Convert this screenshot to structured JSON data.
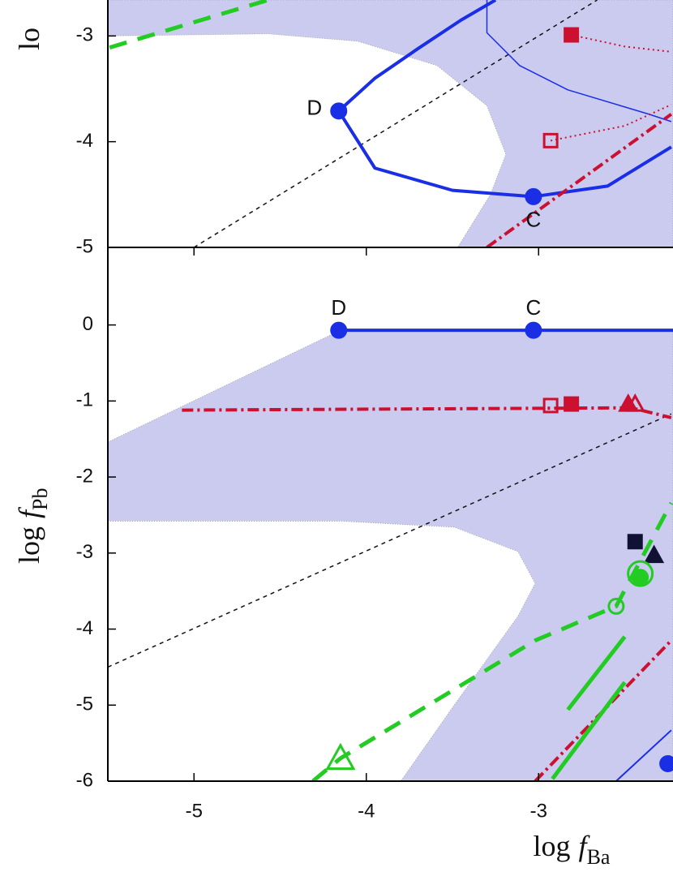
{
  "chart_data": [
    {
      "type": "line",
      "ylabel": "lo",
      "xlim": [
        -5.5,
        -2.22
      ],
      "ylim": [
        -5,
        -2.66
      ],
      "xticks": [
        -5,
        -4,
        -3
      ],
      "yticks": [
        -5,
        -4,
        -3
      ],
      "series": [
        {
          "kind": "region",
          "color": "#cbcbf0",
          "x": [
            -5.5,
            -2.22,
            -2.22,
            -3.47,
            -3.28,
            -3.19,
            -3.3,
            -3.59,
            -4.05,
            -4.57,
            -5.5
          ],
          "y": [
            -2.66,
            -2.66,
            -5,
            -5,
            -4.5,
            -4.12,
            -3.66,
            -3.28,
            -3.05,
            -2.98,
            -3.0
          ]
        },
        {
          "kind": "line",
          "style": "finedash",
          "width": 1.5,
          "color": "#111111",
          "x": [
            -5.0,
            -2.66
          ],
          "y": [
            -5.0,
            -2.66
          ]
        },
        {
          "kind": "line",
          "style": "dash",
          "width": 5,
          "color": "#22cc22",
          "x": [
            -5.49,
            -4.57
          ],
          "y": [
            -3.11,
            -2.66
          ]
        },
        {
          "kind": "line",
          "style": "solid",
          "width": 1.5,
          "color": "#1a2ee6",
          "x": [
            -3.3,
            -3.3,
            -3.11,
            -2.83,
            -2.36,
            -2.23
          ],
          "y": [
            -2.66,
            -2.97,
            -3.28,
            -3.51,
            -3.74,
            -3.81
          ]
        },
        {
          "kind": "line",
          "style": "solid",
          "width": 4,
          "color": "#1a2ee6",
          "x": [
            -3.25,
            -3.45,
            -3.7,
            -3.95,
            -4.16,
            -3.95,
            -3.5,
            -3.03,
            -2.6,
            -2.23
          ],
          "y": [
            -2.66,
            -2.85,
            -3.12,
            -3.4,
            -3.71,
            -4.25,
            -4.46,
            -4.52,
            -4.42,
            -4.05
          ]
        },
        {
          "kind": "line",
          "style": "dot",
          "width": 2,
          "color": "#cc1030",
          "x": [
            -2.81,
            -2.5,
            -2.23
          ],
          "y": [
            -2.99,
            -3.1,
            -3.15
          ]
        },
        {
          "kind": "line",
          "style": "dot",
          "width": 2,
          "color": "#cc1030",
          "x": [
            -2.93,
            -2.5,
            -2.23
          ],
          "y": [
            -3.99,
            -3.85,
            -3.65
          ]
        },
        {
          "kind": "line",
          "style": "dashdot",
          "width": 4,
          "color": "#cc1030",
          "x": [
            -3.3,
            -2.23
          ],
          "y": [
            -5.0,
            -3.74
          ]
        },
        {
          "kind": "marker",
          "shape": "circle",
          "filled": true,
          "color": "#1a2ee6",
          "label": "D",
          "label_side": "left",
          "x": [
            -4.16
          ],
          "y": [
            -3.71
          ]
        },
        {
          "kind": "marker",
          "shape": "circle",
          "filled": true,
          "color": "#1a2ee6",
          "label": "C",
          "label_side": "below",
          "x": [
            -3.03
          ],
          "y": [
            -4.52
          ]
        },
        {
          "kind": "marker",
          "shape": "square",
          "filled": true,
          "color": "#cc1030",
          "x": [
            -2.81
          ],
          "y": [
            -2.99
          ]
        },
        {
          "kind": "marker",
          "shape": "square",
          "filled": false,
          "color": "#cc1030",
          "x": [
            -2.93
          ],
          "y": [
            -3.99
          ]
        }
      ]
    },
    {
      "type": "line",
      "xlabel": "log",
      "xlabel_var": "f",
      "xlabel_sub": "Ba",
      "ylabel": "log",
      "ylabel_var": "f",
      "ylabel_sub": "Pb",
      "xlim": [
        -5.5,
        -2.22
      ],
      "ylim": [
        -6,
        1.02
      ],
      "xticks": [
        -5,
        -4,
        -3
      ],
      "yticks": [
        -6,
        -5,
        -4,
        -3,
        -2,
        -1,
        0
      ],
      "series": [
        {
          "kind": "region",
          "color": "#cbcbf0",
          "x": [
            -5.5,
            -4.16,
            -2.22,
            -2.22,
            -3.8,
            -3.49,
            -3.12,
            -3.02,
            -3.12,
            -3.49,
            -4.15,
            -5.5
          ],
          "y": [
            -1.54,
            -0.08,
            -0.08,
            -6,
            -6,
            -5.0,
            -3.83,
            -3.4,
            -2.98,
            -2.66,
            -2.58,
            -2.58
          ]
        },
        {
          "kind": "line",
          "style": "finedash",
          "width": 1.5,
          "color": "#111111",
          "x": [
            -5.5,
            -2.23
          ],
          "y": [
            -4.5,
            -1.17
          ]
        },
        {
          "kind": "line",
          "style": "solid",
          "width": 4,
          "color": "#1a2ee6",
          "x": [
            -4.16,
            -2.22
          ],
          "y": [
            -0.07,
            -0.07
          ]
        },
        {
          "kind": "line",
          "style": "dashdot",
          "width": 4,
          "color": "#cc1030",
          "x": [
            -5.07,
            -2.46,
            -2.23
          ],
          "y": [
            -1.12,
            -1.09,
            -1.22
          ]
        },
        {
          "kind": "line",
          "style": "dashdot",
          "width": 4,
          "color": "#cc1030",
          "x": [
            -3.02,
            -2.23
          ],
          "y": [
            -6.0,
            -4.15
          ]
        },
        {
          "kind": "line",
          "style": "solid",
          "width": 2,
          "color": "#1a2ee6",
          "x": [
            -2.55,
            -2.23
          ],
          "y": [
            -6.0,
            -5.33
          ]
        },
        {
          "kind": "line",
          "style": "dash",
          "width": 5,
          "color": "#22cc22",
          "x": [
            -4.31,
            -4.15,
            -3.02,
            -2.55,
            -2.23
          ],
          "y": [
            -6.0,
            -5.7,
            -4.15,
            -3.7,
            -2.34
          ]
        },
        {
          "kind": "line",
          "style": "solid",
          "width": 5,
          "color": "#22cc22",
          "x": [
            -2.83,
            -2.5
          ],
          "y": [
            -5.06,
            -4.1
          ]
        },
        {
          "kind": "line",
          "style": "solid",
          "width": 5,
          "color": "#22cc22",
          "x": [
            -2.92,
            -2.5
          ],
          "y": [
            -5.97,
            -4.7
          ]
        },
        {
          "kind": "marker",
          "shape": "circle",
          "filled": true,
          "color": "#1a2ee6",
          "label": "D",
          "label_side": "above",
          "x": [
            -4.16
          ],
          "y": [
            -0.07
          ]
        },
        {
          "kind": "marker",
          "shape": "circle",
          "filled": true,
          "color": "#1a2ee6",
          "label": "C",
          "label_side": "above",
          "x": [
            -3.03
          ],
          "y": [
            -0.07
          ]
        },
        {
          "kind": "marker",
          "shape": "circle",
          "filled": true,
          "color": "#1a2ee6",
          "x": [
            -2.25
          ],
          "y": [
            -5.77
          ]
        },
        {
          "kind": "marker",
          "shape": "square",
          "filled": false,
          "color": "#cc1030",
          "x": [
            -2.93
          ],
          "y": [
            -1.06
          ]
        },
        {
          "kind": "marker",
          "shape": "square",
          "filled": true,
          "color": "#cc1030",
          "x": [
            -2.81
          ],
          "y": [
            -1.04
          ]
        },
        {
          "kind": "marker",
          "shape": "triangle",
          "filled": true,
          "color": "#cc1030",
          "x": [
            -2.48
          ],
          "y": [
            -1.04
          ]
        },
        {
          "kind": "marker",
          "shape": "triangle",
          "filled": false,
          "color": "#cc1030",
          "x": [
            -2.44
          ],
          "y": [
            -1.04
          ]
        },
        {
          "kind": "marker",
          "shape": "square",
          "filled": true,
          "color": "#111133",
          "x": [
            -2.44
          ],
          "y": [
            -2.85
          ]
        },
        {
          "kind": "marker",
          "shape": "triangle",
          "filled": true,
          "color": "#111133",
          "x": [
            -2.33
          ],
          "y": [
            -3.03
          ]
        },
        {
          "kind": "marker",
          "shape": "bigcircle",
          "filled": false,
          "color": "#22cc22",
          "x": [
            -2.41
          ],
          "y": [
            -3.27
          ]
        },
        {
          "kind": "marker",
          "shape": "circle",
          "filled": true,
          "color": "#22cc22",
          "x": [
            -2.41
          ],
          "y": [
            -3.32
          ]
        },
        {
          "kind": "marker",
          "shape": "circle",
          "filled": false,
          "color": "#22cc22",
          "x": [
            -2.55
          ],
          "y": [
            -3.7
          ]
        },
        {
          "kind": "marker",
          "shape": "bigtriangle",
          "filled": false,
          "color": "#22cc22",
          "x": [
            -4.15
          ],
          "y": [
            -5.7
          ]
        }
      ]
    }
  ]
}
